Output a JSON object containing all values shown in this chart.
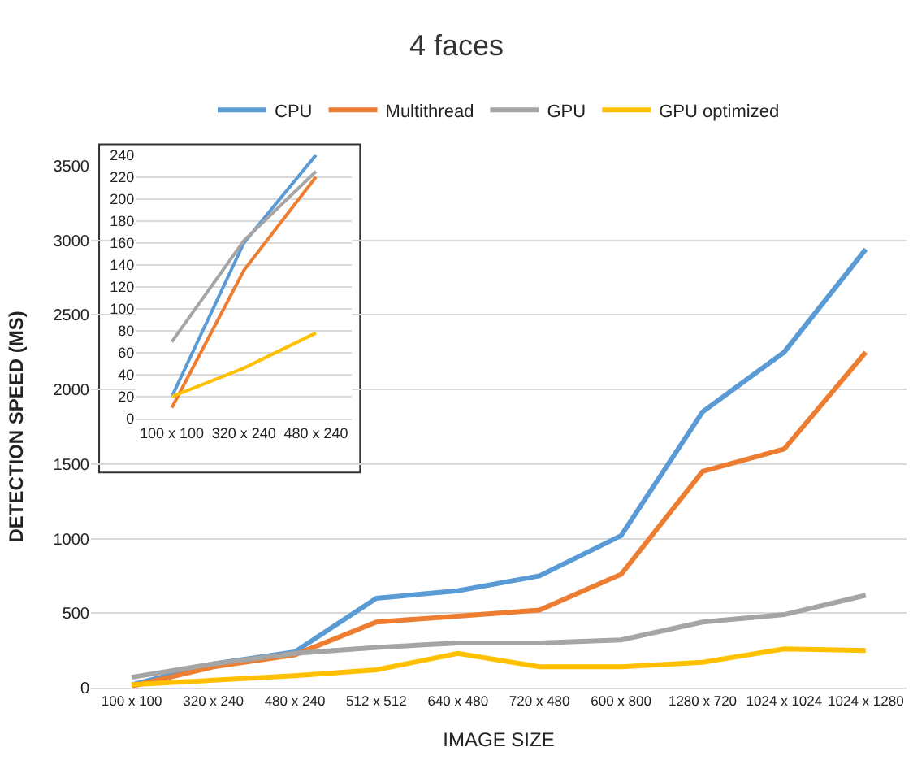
{
  "chart_data": [
    {
      "type": "line",
      "title": "4 faces",
      "xlabel": "IMAGE SIZE",
      "ylabel": "DETECTION SPEED (MS)",
      "categories": [
        "100 x 100",
        "320 x 240",
        "480 x 240",
        "512 x 512",
        "640 x 480",
        "720 x 480",
        "600 x 800",
        "1280 x 720",
        "1024 x 1024",
        "1024 x 1280"
      ],
      "series": [
        {
          "name": "CPU",
          "color": "#5b9bd5",
          "values": [
            20,
            160,
            240,
            600,
            650,
            750,
            1020,
            1850,
            2250,
            2940
          ]
        },
        {
          "name": "Multithread",
          "color": "#ed7d31",
          "values": [
            10,
            140,
            220,
            440,
            480,
            520,
            760,
            1450,
            1600,
            2250
          ]
        },
        {
          "name": "GPU",
          "color": "#a5a5a5",
          "values": [
            70,
            160,
            230,
            270,
            300,
            300,
            320,
            440,
            490,
            620
          ]
        },
        {
          "name": "GPU optimized",
          "color": "#ffc000",
          "values": [
            20,
            50,
            80,
            120,
            230,
            140,
            140,
            170,
            260,
            250
          ]
        }
      ],
      "ylim": [
        0,
        3500
      ],
      "yticks": [
        0,
        500,
        1000,
        1500,
        2000,
        2500,
        3000,
        3500
      ],
      "grid": "y",
      "legend": "top"
    },
    {
      "type": "line",
      "categories": [
        "100 x 100",
        "320 x 240",
        "480 x 240"
      ],
      "series": [
        {
          "color": "#5b9bd5",
          "values": [
            20,
            160,
            240
          ]
        },
        {
          "color": "#ed7d31",
          "values": [
            10,
            135,
            220
          ]
        },
        {
          "color": "#a5a5a5",
          "values": [
            70,
            162,
            225
          ]
        },
        {
          "color": "#ffc000",
          "values": [
            20,
            46,
            78
          ]
        }
      ],
      "ylim": [
        0,
        240
      ],
      "yticks": [
        0,
        20,
        40,
        60,
        80,
        100,
        120,
        140,
        160,
        180,
        200,
        220,
        240
      ],
      "grid": "y"
    }
  ]
}
